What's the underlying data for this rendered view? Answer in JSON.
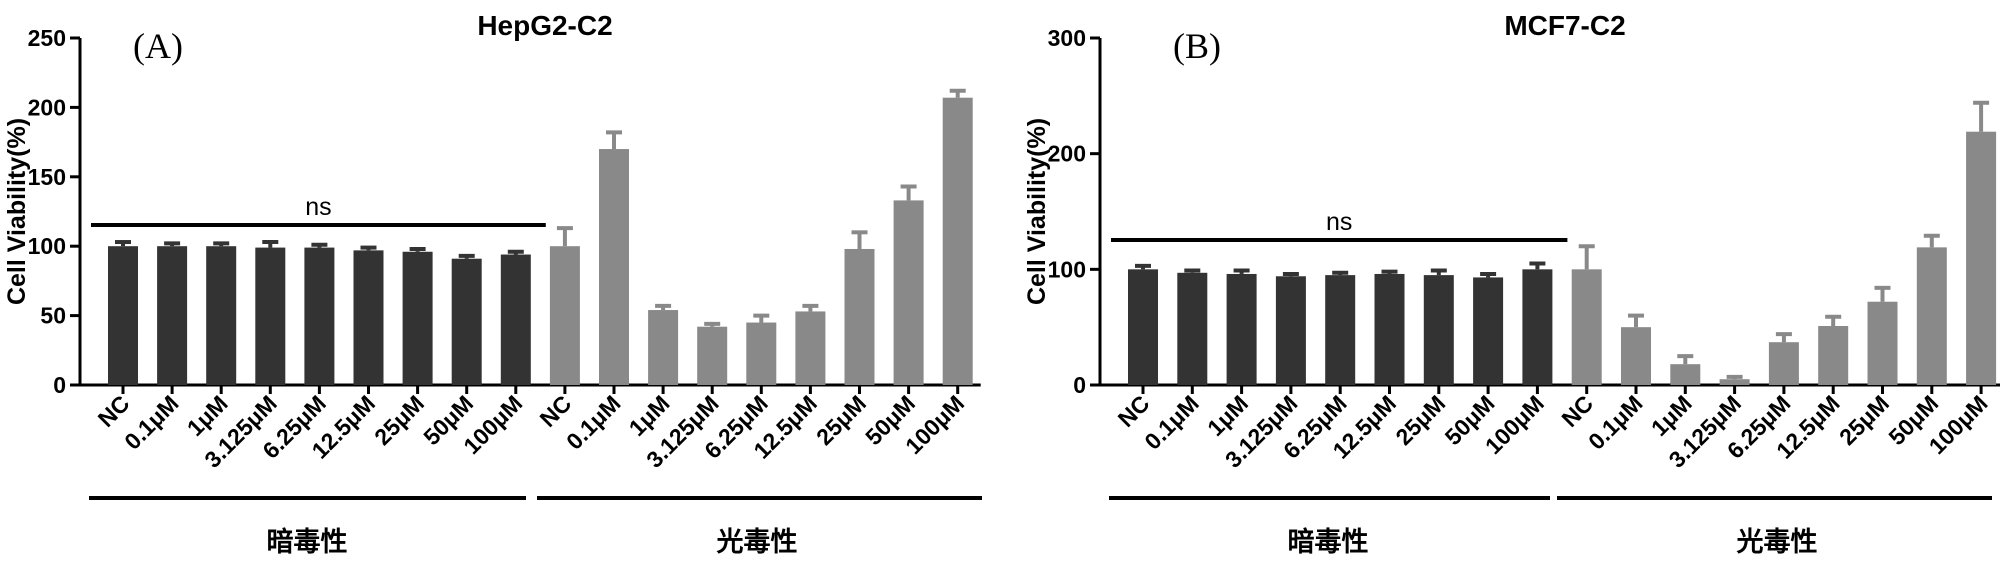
{
  "chart_data": [
    {
      "type": "bar",
      "panel_label": "(A)",
      "title": "HepG2-C2",
      "ylabel": "Cell Viability(%)",
      "ylim": [
        0,
        250
      ],
      "yticks": [
        0,
        50,
        100,
        150,
        200,
        250
      ],
      "categories": [
        "NC",
        "0.1μM",
        "1μM",
        "3.125μM",
        "6.25μM",
        "12.5μM",
        "25μM",
        "50μM",
        "100μM",
        "NC",
        "0.1μM",
        "1μM",
        "3.125μM",
        "6.25μM",
        "12.5μM",
        "25μM",
        "50μM",
        "100μM"
      ],
      "groups": [
        {
          "label": "暗毒性",
          "color": "#333333",
          "values": [
            100,
            100,
            100,
            99,
            99,
            97,
            96,
            91,
            94
          ],
          "errors": [
            3,
            2,
            2,
            4,
            2,
            2,
            2,
            2,
            2
          ]
        },
        {
          "label": "光毒性",
          "color": "#898989",
          "values": [
            100,
            170,
            54,
            42,
            45,
            53,
            98,
            133,
            207
          ],
          "errors": [
            13,
            12,
            3,
            2,
            5,
            4,
            12,
            10,
            5
          ]
        }
      ],
      "annotation": "ns",
      "grid": false
    },
    {
      "type": "bar",
      "panel_label": "(B)",
      "title": "MCF7-C2",
      "ylabel": "Cell Viability(%)",
      "ylim": [
        0,
        300
      ],
      "yticks": [
        0,
        100,
        200,
        300
      ],
      "categories": [
        "NC",
        "0.1μM",
        "1μM",
        "3.125μM",
        "6.25μM",
        "12.5μM",
        "25μM",
        "50μM",
        "100μM",
        "NC",
        "0.1μM",
        "1μM",
        "3.125μM",
        "6.25μM",
        "12.5μM",
        "25μM",
        "50μM",
        "100μM"
      ],
      "groups": [
        {
          "label": "暗毒性",
          "color": "#333333",
          "values": [
            100,
            97,
            96,
            94,
            95,
            96,
            95,
            93,
            100
          ],
          "errors": [
            3,
            2,
            3,
            2,
            2,
            2,
            4,
            3,
            5
          ]
        },
        {
          "label": "光毒性",
          "color": "#898989",
          "values": [
            100,
            50,
            18,
            5,
            37,
            51,
            72,
            119,
            219
          ],
          "errors": [
            20,
            10,
            7,
            2,
            7,
            8,
            12,
            10,
            25
          ]
        }
      ],
      "annotation": "ns",
      "grid": false
    }
  ]
}
